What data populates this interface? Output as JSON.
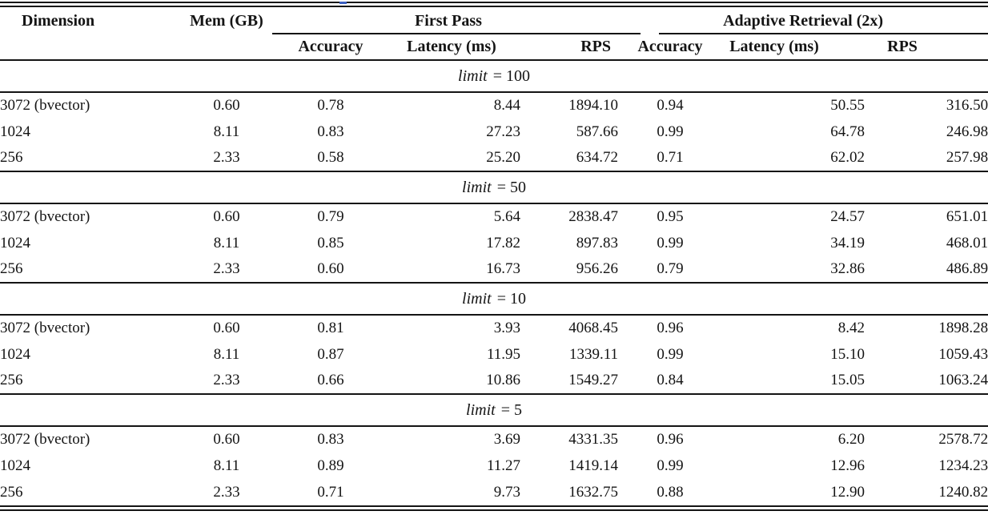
{
  "page": {
    "background": "#ffffff",
    "rule_color": "#141414",
    "text_color": "#141414",
    "artifact_color": "#3b5fc0"
  },
  "table": {
    "header": {
      "dimension": "Dimension",
      "mem": "Mem (GB)",
      "group_first_pass": "First Pass",
      "group_adaptive": "Adaptive Retrieval (2x)",
      "sub": [
        "Accuracy",
        "Latency (ms)",
        "RPS",
        "Accuracy",
        "Latency (ms)",
        "RPS"
      ]
    },
    "sections": [
      {
        "limit_var": "limit",
        "limit_value": "100",
        "rows": [
          {
            "dimension": "3072 (bvector)",
            "mem": "0.60",
            "fp_accuracy": "0.78",
            "fp_latency": "8.44",
            "fp_rps": "1894.10",
            "ar_accuracy": "0.94",
            "ar_latency": "50.55",
            "ar_rps": "316.50"
          },
          {
            "dimension": "1024",
            "mem": "8.11",
            "fp_accuracy": "0.83",
            "fp_latency": "27.23",
            "fp_rps": "587.66",
            "ar_accuracy": "0.99",
            "ar_latency": "64.78",
            "ar_rps": "246.98"
          },
          {
            "dimension": "256",
            "mem": "2.33",
            "fp_accuracy": "0.58",
            "fp_latency": "25.20",
            "fp_rps": "634.72",
            "ar_accuracy": "0.71",
            "ar_latency": "62.02",
            "ar_rps": "257.98"
          }
        ]
      },
      {
        "limit_var": "limit",
        "limit_value": "50",
        "rows": [
          {
            "dimension": "3072 (bvector)",
            "mem": "0.60",
            "fp_accuracy": "0.79",
            "fp_latency": "5.64",
            "fp_rps": "2838.47",
            "ar_accuracy": "0.95",
            "ar_latency": "24.57",
            "ar_rps": "651.01"
          },
          {
            "dimension": "1024",
            "mem": "8.11",
            "fp_accuracy": "0.85",
            "fp_latency": "17.82",
            "fp_rps": "897.83",
            "ar_accuracy": "0.99",
            "ar_latency": "34.19",
            "ar_rps": "468.01"
          },
          {
            "dimension": "256",
            "mem": "2.33",
            "fp_accuracy": "0.60",
            "fp_latency": "16.73",
            "fp_rps": "956.26",
            "ar_accuracy": "0.79",
            "ar_latency": "32.86",
            "ar_rps": "486.89"
          }
        ]
      },
      {
        "limit_var": "limit",
        "limit_value": "10",
        "rows": [
          {
            "dimension": "3072 (bvector)",
            "mem": "0.60",
            "fp_accuracy": "0.81",
            "fp_latency": "3.93",
            "fp_rps": "4068.45",
            "ar_accuracy": "0.96",
            "ar_latency": "8.42",
            "ar_rps": "1898.28"
          },
          {
            "dimension": "1024",
            "mem": "8.11",
            "fp_accuracy": "0.87",
            "fp_latency": "11.95",
            "fp_rps": "1339.11",
            "ar_accuracy": "0.99",
            "ar_latency": "15.10",
            "ar_rps": "1059.43"
          },
          {
            "dimension": "256",
            "mem": "2.33",
            "fp_accuracy": "0.66",
            "fp_latency": "10.86",
            "fp_rps": "1549.27",
            "ar_accuracy": "0.84",
            "ar_latency": "15.05",
            "ar_rps": "1063.24"
          }
        ]
      },
      {
        "limit_var": "limit",
        "limit_value": "5",
        "rows": [
          {
            "dimension": "3072 (bvector)",
            "mem": "0.60",
            "fp_accuracy": "0.83",
            "fp_latency": "3.69",
            "fp_rps": "4331.35",
            "ar_accuracy": "0.96",
            "ar_latency": "6.20",
            "ar_rps": "2578.72"
          },
          {
            "dimension": "1024",
            "mem": "8.11",
            "fp_accuracy": "0.89",
            "fp_latency": "11.27",
            "fp_rps": "1419.14",
            "ar_accuracy": "0.99",
            "ar_latency": "12.96",
            "ar_rps": "1234.23"
          },
          {
            "dimension": "256",
            "mem": "2.33",
            "fp_accuracy": "0.71",
            "fp_latency": "9.73",
            "fp_rps": "1632.75",
            "ar_accuracy": "0.88",
            "ar_latency": "12.90",
            "ar_rps": "1240.82"
          }
        ]
      }
    ]
  }
}
